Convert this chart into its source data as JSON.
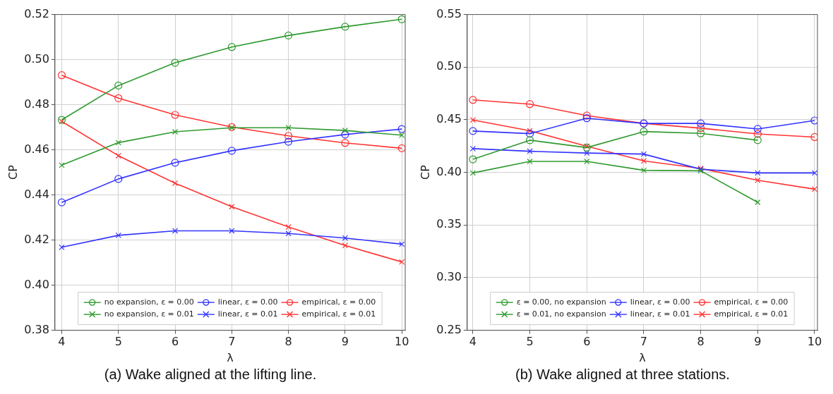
{
  "chart_data": [
    {
      "type": "line",
      "xlabel": "λ",
      "ylabel": "CP",
      "annotations": [
        "(a) Wake aligned at the lifting line."
      ],
      "x": [
        4,
        5,
        6,
        7,
        8,
        9,
        10
      ],
      "xlim": [
        3.88,
        10.06
      ],
      "xticks": [
        4,
        5,
        6,
        7,
        8,
        9,
        10
      ],
      "ylim": [
        0.38,
        0.52
      ],
      "yticks": [
        {
          "value": 0.38,
          "label": "0.38"
        },
        {
          "value": 0.4,
          "label": "0.40"
        },
        {
          "value": 0.42,
          "label": "0.42"
        },
        {
          "value": 0.44,
          "label": "0.44"
        },
        {
          "value": 0.46,
          "label": "0.46"
        },
        {
          "value": 0.48,
          "label": "0.48"
        },
        {
          "value": 0.5,
          "label": "0.50"
        },
        {
          "value": 0.52,
          "label": "0.52"
        }
      ],
      "grid": true,
      "legend": "bottom",
      "line_style": "solid",
      "series": [
        {
          "name": "no expansion, ε = 0.00",
          "color": "#2e9a2e",
          "marker": "circle",
          "values": [
            0.4733,
            0.4885,
            0.4986,
            0.5056,
            0.5107,
            0.5146,
            0.5179
          ]
        },
        {
          "name": "no expansion, ε = 0.01",
          "color": "#2e9a2e",
          "marker": "cross",
          "values": [
            0.4532,
            0.4632,
            0.468,
            0.4698,
            0.4698,
            0.4686,
            0.4665
          ]
        },
        {
          "name": "linear, ε = 0.00",
          "color": "#3333ff",
          "marker": "circle",
          "values": [
            0.4367,
            0.4471,
            0.4543,
            0.4596,
            0.4636,
            0.4668,
            0.4692
          ]
        },
        {
          "name": "linear, ε = 0.01",
          "color": "#3333ff",
          "marker": "cross",
          "values": [
            0.4168,
            0.4221,
            0.4241,
            0.4241,
            0.4229,
            0.4209,
            0.4182
          ]
        },
        {
          "name": "empirical, ε = 0.00",
          "color": "#ff3333",
          "marker": "circle",
          "values": [
            0.4931,
            0.4829,
            0.4755,
            0.4701,
            0.4662,
            0.4631,
            0.4607
          ]
        },
        {
          "name": "empirical, ε = 0.01",
          "color": "#ff3333",
          "marker": "cross",
          "values": [
            0.4726,
            0.4574,
            0.4452,
            0.4348,
            0.4258,
            0.4176,
            0.4103
          ]
        }
      ]
    },
    {
      "type": "line",
      "xlabel": "λ",
      "ylabel": "CP",
      "annotations": [
        "(b) Wake aligned at three stations."
      ],
      "x": [
        4,
        5,
        6,
        7,
        8,
        9,
        10
      ],
      "xlim": [
        3.9,
        10.05
      ],
      "xticks": [
        4,
        5,
        6,
        7,
        8,
        9,
        10
      ],
      "ylim": [
        0.25,
        0.55
      ],
      "yticks": [
        {
          "value": 0.25,
          "label": "0.25"
        },
        {
          "value": 0.3,
          "label": "0.30"
        },
        {
          "value": 0.35,
          "label": "0.35"
        },
        {
          "value": 0.4,
          "label": "0.40"
        },
        {
          "value": 0.45,
          "label": "0.45"
        },
        {
          "value": 0.5,
          "label": "0.50"
        },
        {
          "value": 0.55,
          "label": "0.55"
        }
      ],
      "grid": true,
      "legend": "bottom",
      "line_style": "solid",
      "series": [
        {
          "name": "ε = 0.00, no expansion",
          "color": "#2e9a2e",
          "marker": "circle",
          "values": [
            0.4124,
            0.4306,
            0.4236,
            0.4388,
            0.4371,
            0.4306,
            null
          ]
        },
        {
          "name": "ε = 0.01, no expansion",
          "color": "#2e9a2e",
          "marker": "cross",
          "values": [
            0.3995,
            0.4104,
            0.4104,
            0.402,
            0.4015,
            0.3716,
            null
          ]
        },
        {
          "name": "linear, ε = 0.00",
          "color": "#3333ff",
          "marker": "circle",
          "values": [
            0.4393,
            0.4368,
            0.4515,
            0.4465,
            0.4465,
            0.4413,
            0.4493
          ]
        },
        {
          "name": "linear, ε = 0.01",
          "color": "#3333ff",
          "marker": "cross",
          "values": [
            0.4226,
            0.4201,
            0.4184,
            0.4174,
            0.403,
            0.3995,
            0.3995
          ]
        },
        {
          "name": "empirical, ε = 0.00",
          "color": "#ff3333",
          "marker": "circle",
          "values": [
            0.4689,
            0.4649,
            0.454,
            0.4465,
            0.442,
            0.4366,
            0.4336
          ]
        },
        {
          "name": "empirical, ε = 0.01",
          "color": "#ff3333",
          "marker": "cross",
          "values": [
            0.4498,
            0.4396,
            0.4249,
            0.4109,
            0.4037,
            0.3925,
            0.3841
          ]
        }
      ]
    }
  ]
}
